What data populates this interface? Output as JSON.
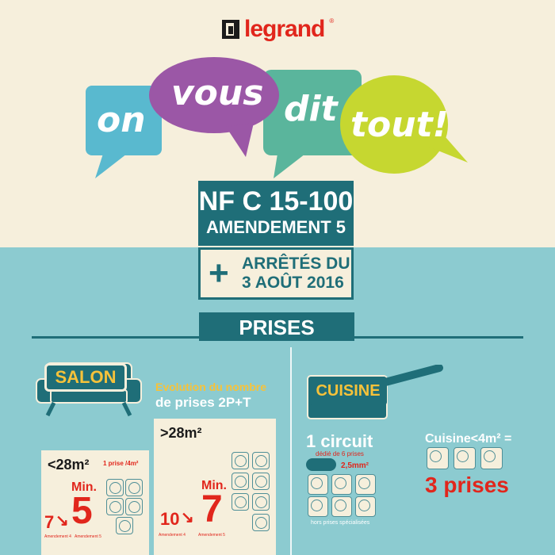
{
  "logo": {
    "text": "legrand",
    "reg": "®"
  },
  "bubbles": {
    "on": "on",
    "vous": "vous",
    "dit": "dit",
    "tout": "tout!"
  },
  "title": {
    "line1": "NF C 15-100",
    "line2": "AMENDEMENT 5"
  },
  "arretes": {
    "plus": "+",
    "line1": "ARRÊTÉS DU",
    "line2": "3 AOÛT 2016"
  },
  "section": {
    "prises": "PRISES"
  },
  "salon": {
    "label": "SALON",
    "evolution_line1": "Evolution du nombre",
    "evolution_line2": "de prises 2P+T",
    "small": {
      "area": "<28m²",
      "rule": "1 prise /4m²",
      "min_label": "Min.",
      "min_value": "5",
      "old_value": "7",
      "arrow": "↘",
      "foot_left": "Amendement 4",
      "foot_right": "Amendement 5"
    },
    "big": {
      "area": ">28m²",
      "min_label": "Min.",
      "min_value": "7",
      "old_value": "10",
      "arrow": "↘",
      "foot_left": "Amendement 4",
      "foot_right": "Amendement 5"
    }
  },
  "cuisine": {
    "label": "CUISINE",
    "circuit_title": "1 circuit",
    "circuit_sub": "dédié de 6 prises",
    "cable": "2,5mm²",
    "hors": "hors prises spécialisées",
    "small_kitchen": "Cuisine<4m² =",
    "three": "3 prises"
  },
  "colors": {
    "teal_dark": "#1f6e78",
    "teal_light": "#8ccbd0",
    "cream": "#f6efdc",
    "red": "#e1261c",
    "yellow": "#f6c23a",
    "blue_bubble": "#59b9cf",
    "purple_bubble": "#9b57a6",
    "green_bubble": "#5ab59c",
    "lime_bubble": "#c6d730"
  }
}
